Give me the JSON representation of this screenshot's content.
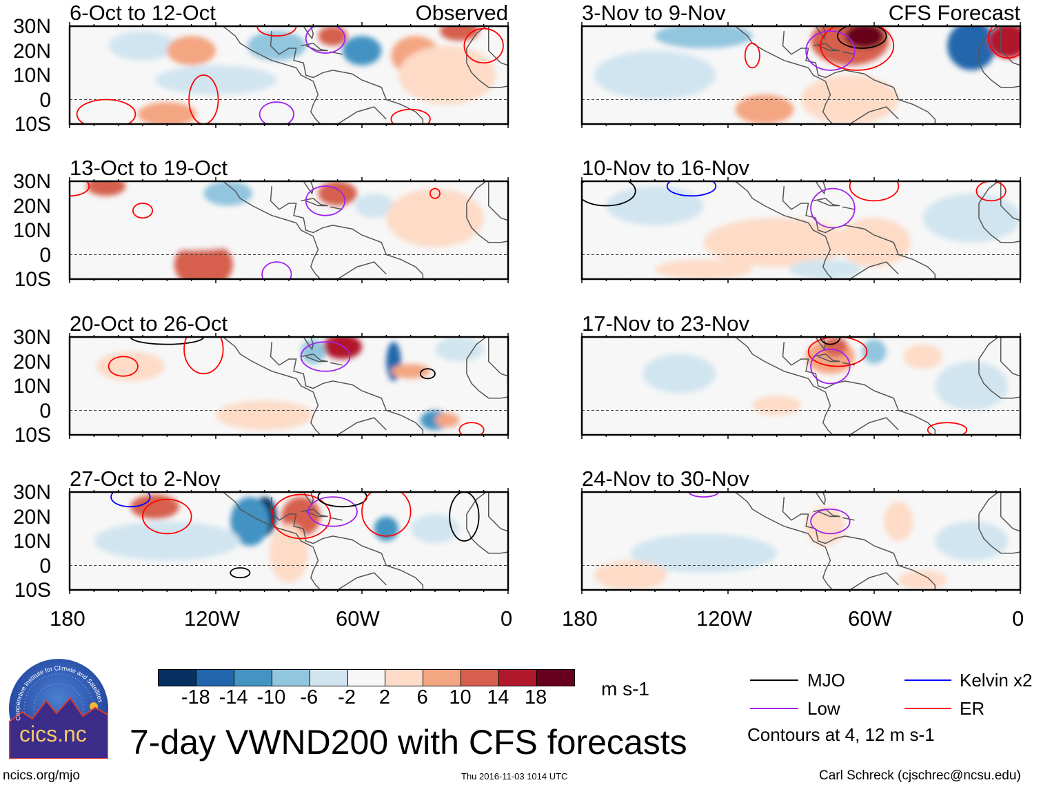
{
  "figure_title": "7-day VWND200 with CFS forecasts",
  "observed_label": "Observed",
  "forecast_label": "CFS Forecast",
  "panels_left": [
    {
      "title": "6-Oct to 12-Oct"
    },
    {
      "title": "13-Oct to 19-Oct"
    },
    {
      "title": "20-Oct to 26-Oct"
    },
    {
      "title": "27-Oct to 2-Nov"
    }
  ],
  "panels_right": [
    {
      "title": "3-Nov to 9-Nov"
    },
    {
      "title": "10-Nov to 16-Nov"
    },
    {
      "title": "17-Nov to 23-Nov"
    },
    {
      "title": "24-Nov to 30-Nov"
    }
  ],
  "lat_ticks": [
    "30N",
    "20N",
    "10N",
    "0",
    "10S"
  ],
  "lon_ticks": [
    "180",
    "120W",
    "60W",
    "0"
  ],
  "colorbar": {
    "colors": [
      "#053061",
      "#2166ac",
      "#4393c3",
      "#92c5de",
      "#d1e5f0",
      "#f7f7f7",
      "#fddbc7",
      "#f4a582",
      "#d6604d",
      "#b2182b",
      "#67001f"
    ],
    "labels": [
      "-18",
      "-14",
      "-10",
      "-6",
      "-2",
      "2",
      "6",
      "10",
      "14",
      "18"
    ],
    "units": "m s-1"
  },
  "legend": {
    "items": [
      {
        "label": "MJO",
        "color": "#000000"
      },
      {
        "label": "Kelvin x2",
        "color": "#0000ff"
      },
      {
        "label": "Low",
        "color": "#a020f0"
      },
      {
        "label": "ER",
        "color": "#ff0000"
      }
    ],
    "contours_note": "Contours at 4, 12 m s-1"
  },
  "logo_text": "cics.nc",
  "logo_ring_text": "Cooperative Institute for Climate and Satellites",
  "footer": {
    "url": "ncics.org/mjo",
    "timestamp": "Thu 2016-11-03 1014 UTC",
    "author": "Carl Schreck (cjschrec@ncsu.edu)"
  }
}
